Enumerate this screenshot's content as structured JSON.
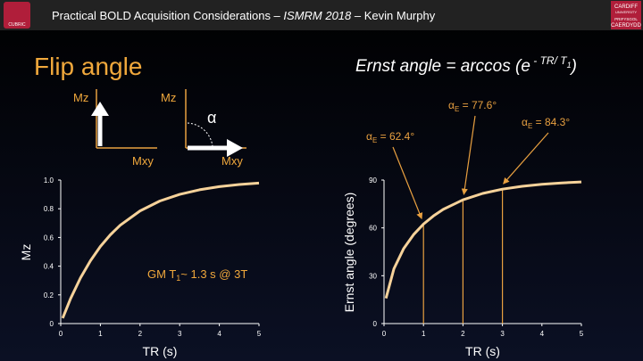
{
  "header": {
    "parts": [
      "Practical BOLD Acquisition Considerations – ",
      "ISMRM 2018",
      " – Kevin Murphy"
    ],
    "left_logo": "CUBRIC",
    "right_logo": [
      "CARDIFF",
      "UNIVERSITY",
      "PRIFYSGOL",
      "CAERDYDD"
    ]
  },
  "slide_title": "Flip angle",
  "formula": [
    "Ernst angle = arccos (e",
    " - TR/ T",
    "1",
    ")"
  ],
  "diagram": {
    "before": {
      "y_label": "Mz",
      "x_label": "Mxy"
    },
    "after": {
      "y_label": "Mz",
      "x_label": "Mxy",
      "angle": "α"
    }
  },
  "chart_data": [
    {
      "type": "line",
      "x_label": "TR (s)",
      "y_label": "Mz",
      "annotation": [
        "GM T",
        "1",
        "~ 1.3 s @ 3T"
      ],
      "x": [
        0.05,
        0.25,
        0.5,
        0.75,
        1,
        1.25,
        1.5,
        2,
        2.5,
        3,
        3.5,
        4,
        4.5,
        5
      ],
      "series": [
        {
          "color": "#f6d29a",
          "values": [
            0.038,
            0.175,
            0.319,
            0.438,
            0.537,
            0.618,
            0.685,
            0.785,
            0.854,
            0.9,
            0.932,
            0.954,
            0.969,
            0.979
          ]
        }
      ],
      "xlim": [
        0,
        5
      ],
      "xticks": [
        0,
        1,
        2,
        3,
        4,
        5
      ],
      "ylim": [
        0,
        1
      ],
      "yticks": [
        0,
        0.2,
        0.4,
        0.6,
        0.8,
        {
          "value": 1,
          "label": "1.0"
        }
      ]
    },
    {
      "type": "line",
      "x_label": "TR (s)",
      "y_label": "Ernst angle (degrees)",
      "x": [
        0.05,
        0.25,
        0.5,
        0.75,
        1,
        1.25,
        1.5,
        2,
        2.5,
        3,
        3.5,
        4,
        4.5,
        5
      ],
      "series": [
        {
          "color": "#f6d29a",
          "values": [
            15.8,
            34.4,
            47.1,
            55.8,
            62.4,
            67.5,
            71.6,
            77.6,
            81.6,
            84.3,
            86.1,
            87.4,
            88.2,
            88.8
          ]
        }
      ],
      "xlim": [
        0,
        5
      ],
      "xticks": [
        0,
        1,
        2,
        3,
        4,
        5
      ],
      "ylim": [
        0,
        90
      ],
      "yticks": [
        0,
        30,
        60,
        90
      ],
      "markers_color": "#e8a040",
      "markers": [
        {
          "x": 1,
          "value": 62.4,
          "symbol": "α",
          "subscript": "E",
          "label": " = 62.4°"
        },
        {
          "x": 2,
          "value": 77.6,
          "symbol": "α",
          "subscript": "E",
          "label": " = 77.6°"
        },
        {
          "x": 3,
          "value": 84.3,
          "symbol": "α",
          "subscript": "E",
          "label": " = 84.3°"
        }
      ]
    }
  ]
}
